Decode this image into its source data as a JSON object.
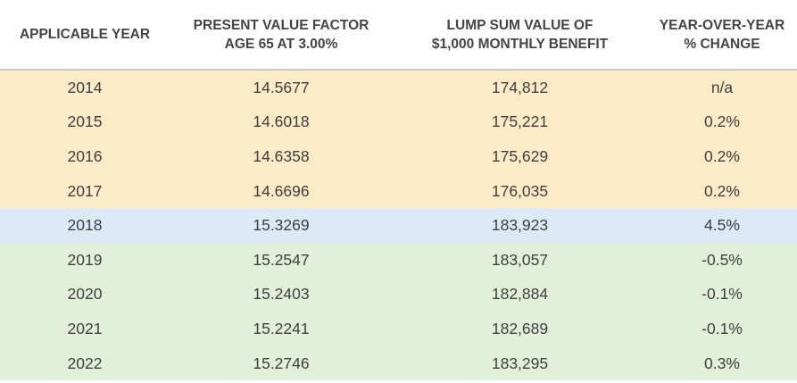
{
  "table": {
    "header": [
      [
        "APPLICABLE YEAR"
      ],
      [
        "PRESENT VALUE FACTOR",
        "AGE 65 AT 3.00%"
      ],
      [
        "LUMP SUM VALUE OF",
        "$1,000 MONTHLY BENEFIT"
      ],
      [
        "YEAR-OVER-YEAR",
        "% CHANGE"
      ]
    ],
    "rows": [
      [
        "2014",
        "14.5677",
        "174,812",
        "n/a"
      ],
      [
        "2015",
        "14.6018",
        "175,221",
        "0.2%"
      ],
      [
        "2016",
        "14.6358",
        "175,629",
        "0.2%"
      ],
      [
        "2017",
        "14.6696",
        "176,035",
        "0.2%"
      ],
      [
        "2018",
        "15.3269",
        "183,923",
        "4.5%"
      ],
      [
        "2019",
        "15.2547",
        "183,057",
        "-0.5%"
      ],
      [
        "2020",
        "15.2403",
        "182,884",
        "-0.1%"
      ],
      [
        "2021",
        "15.2241",
        "182,689",
        "-0.1%"
      ],
      [
        "2022",
        "15.2746",
        "183,295",
        "0.3%"
      ]
    ]
  }
}
